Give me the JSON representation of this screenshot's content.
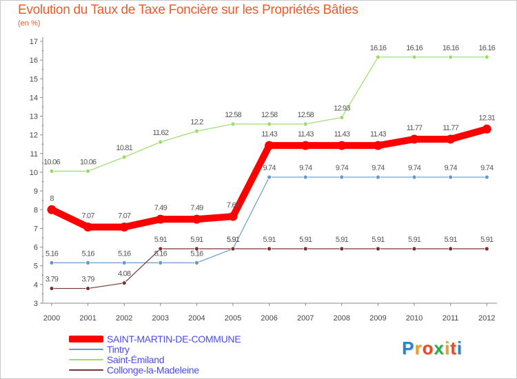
{
  "title": "Evolution du Taux de Taxe Foncière sur les Propriétés Bâties",
  "subtitle": "(en %)",
  "logo": {
    "letters": [
      "P",
      "r",
      "o",
      "x",
      "i",
      "t",
      "i"
    ],
    "colors": [
      "#2a86c8",
      "#f0a020",
      "#e84a2a",
      "#2ab04a",
      "#f0a020",
      "#e84a2a",
      "#2a86c8"
    ]
  },
  "chart_data": {
    "type": "line",
    "title": "Evolution du Taux de Taxe Foncière sur les Propriétés Bâties",
    "ylabel": "(en %)",
    "x": [
      "2000",
      "2001",
      "2002",
      "2003",
      "2004",
      "2005",
      "2006",
      "2007",
      "2008",
      "2009",
      "2010",
      "2011",
      "2012"
    ],
    "ylim": [
      3,
      17
    ],
    "yticks": [
      3,
      4,
      5,
      6,
      7,
      8,
      9,
      10,
      11,
      12,
      13,
      14,
      15,
      16,
      17
    ],
    "grid": false,
    "series": [
      {
        "name": "SAINT-MARTIN-DE-COMMUNE",
        "color": "#ff0000",
        "values": [
          8,
          7.07,
          7.07,
          7.49,
          7.49,
          7.64,
          11.43,
          11.43,
          11.43,
          11.43,
          11.77,
          11.77,
          12.31
        ],
        "labels": [
          "8",
          "7.07",
          "7.07",
          "7.49",
          "7.49",
          "7.64",
          "11.43",
          "11.43",
          "11.43",
          "11.43",
          "11.77",
          "11.77",
          "12.31"
        ]
      },
      {
        "name": "Tintry",
        "color": "#6699cc",
        "values": [
          5.16,
          5.16,
          5.16,
          5.16,
          5.16,
          5.91,
          9.74,
          9.74,
          9.74,
          9.74,
          9.74,
          9.74,
          9.74
        ],
        "labels": [
          "5.16",
          "5.16",
          "5.16",
          "5.16",
          "5.16",
          "5.91",
          "9.74",
          "9.74",
          "9.74",
          "9.74",
          "9.74",
          "9.74",
          "9.74"
        ]
      },
      {
        "name": "Saint-Émiland",
        "color": "#99dd66",
        "values": [
          10.06,
          10.06,
          10.81,
          11.62,
          12.2,
          12.58,
          12.58,
          12.58,
          12.93,
          16.16,
          16.16,
          16.16,
          16.16
        ],
        "labels": [
          "10.06",
          "10.06",
          "10.81",
          "11.62",
          "12.2",
          "12.58",
          "12.58",
          "12.58",
          "12.93",
          "16.16",
          "16.16",
          "16.16",
          "16.16"
        ]
      },
      {
        "name": "Collonge-la-Madeleine",
        "color": "#773333",
        "values": [
          3.79,
          3.79,
          4.08,
          5.91,
          5.91,
          5.91,
          5.91,
          5.91,
          5.91,
          5.91,
          5.91,
          5.91,
          5.91
        ],
        "labels": [
          "3.79",
          "3.79",
          "4.08",
          "5.91",
          "5.91",
          "5.91",
          "5.91",
          "5.91",
          "5.91",
          "5.91",
          "5.91",
          "5.91",
          "5.91"
        ]
      }
    ]
  }
}
